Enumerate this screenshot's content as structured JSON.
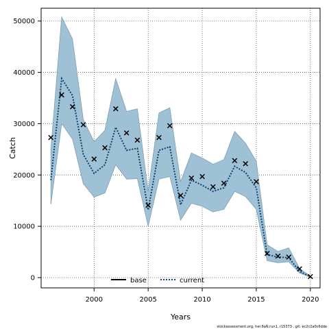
{
  "chart_data": {
    "type": "line",
    "title": "",
    "xlabel": "Years",
    "ylabel": "Catch",
    "xlim": [
      1995.1,
      2020.9
    ],
    "ylim": [
      -2000,
      52500
    ],
    "x_ticks": [
      "2000",
      "2005",
      "2010",
      "2015",
      "2020"
    ],
    "y_ticks": [
      "0",
      "10000",
      "20000",
      "30000",
      "40000",
      "50000"
    ],
    "grid": true,
    "legend_position": "bottom-center",
    "colors": {
      "band": "#9fc1d5",
      "band_edge": "#7f9fb0",
      "base": "#000000",
      "current": "#0b3d6b",
      "observed": "#000000"
    },
    "series": [
      {
        "name": "base",
        "style": "solid",
        "values": []
      },
      {
        "name": "current",
        "style": "dotted",
        "x": [
          1996,
          1997,
          1998,
          1999,
          2000,
          2001,
          2002,
          2003,
          2004,
          2005,
          2006,
          2007,
          2008,
          2009,
          2010,
          2011,
          2012,
          2013,
          2014,
          2015,
          2016,
          2017,
          2018,
          2019,
          2020
        ],
        "values": [
          19000,
          38800,
          35500,
          24000,
          20300,
          22000,
          29300,
          24800,
          25200,
          13200,
          24800,
          25500,
          14200,
          19000,
          18000,
          16800,
          17500,
          21700,
          20500,
          17500,
          4500,
          4000,
          3900,
          1200,
          200
        ],
        "lower": [
          14300,
          30000,
          27000,
          18300,
          15700,
          16500,
          22000,
          19200,
          19300,
          10000,
          19200,
          19700,
          11200,
          14500,
          13900,
          12800,
          13300,
          16800,
          15800,
          13300,
          3300,
          2900,
          3100,
          900,
          100
        ],
        "upper": [
          25000,
          50800,
          46500,
          30800,
          26500,
          28700,
          38800,
          32400,
          32900,
          16800,
          32100,
          33100,
          18700,
          24300,
          23300,
          22100,
          23000,
          28500,
          26200,
          22700,
          6400,
          5100,
          5800,
          1800,
          300
        ]
      }
    ],
    "observed": {
      "x": [
        1996,
        1997,
        1998,
        1999,
        2000,
        2001,
        2002,
        2003,
        2004,
        2005,
        2006,
        2007,
        2008,
        2009,
        2010,
        2011,
        2012,
        2013,
        2014,
        2015,
        2016,
        2017,
        2018,
        2019,
        2020
      ],
      "values": [
        27300,
        35600,
        33300,
        29800,
        23100,
        25300,
        32900,
        28200,
        26800,
        14100,
        27300,
        29600,
        16000,
        19400,
        19700,
        17700,
        18400,
        22800,
        22200,
        18700,
        4700,
        4200,
        4000,
        1700,
        200
      ]
    },
    "legend": [
      {
        "label": "base",
        "style": "solid"
      },
      {
        "label": "current",
        "style": "dotted"
      }
    ],
    "footer": "stockassessment.org, her.6aN.run1, r15373 , git: ec2c2a0c6dde"
  }
}
